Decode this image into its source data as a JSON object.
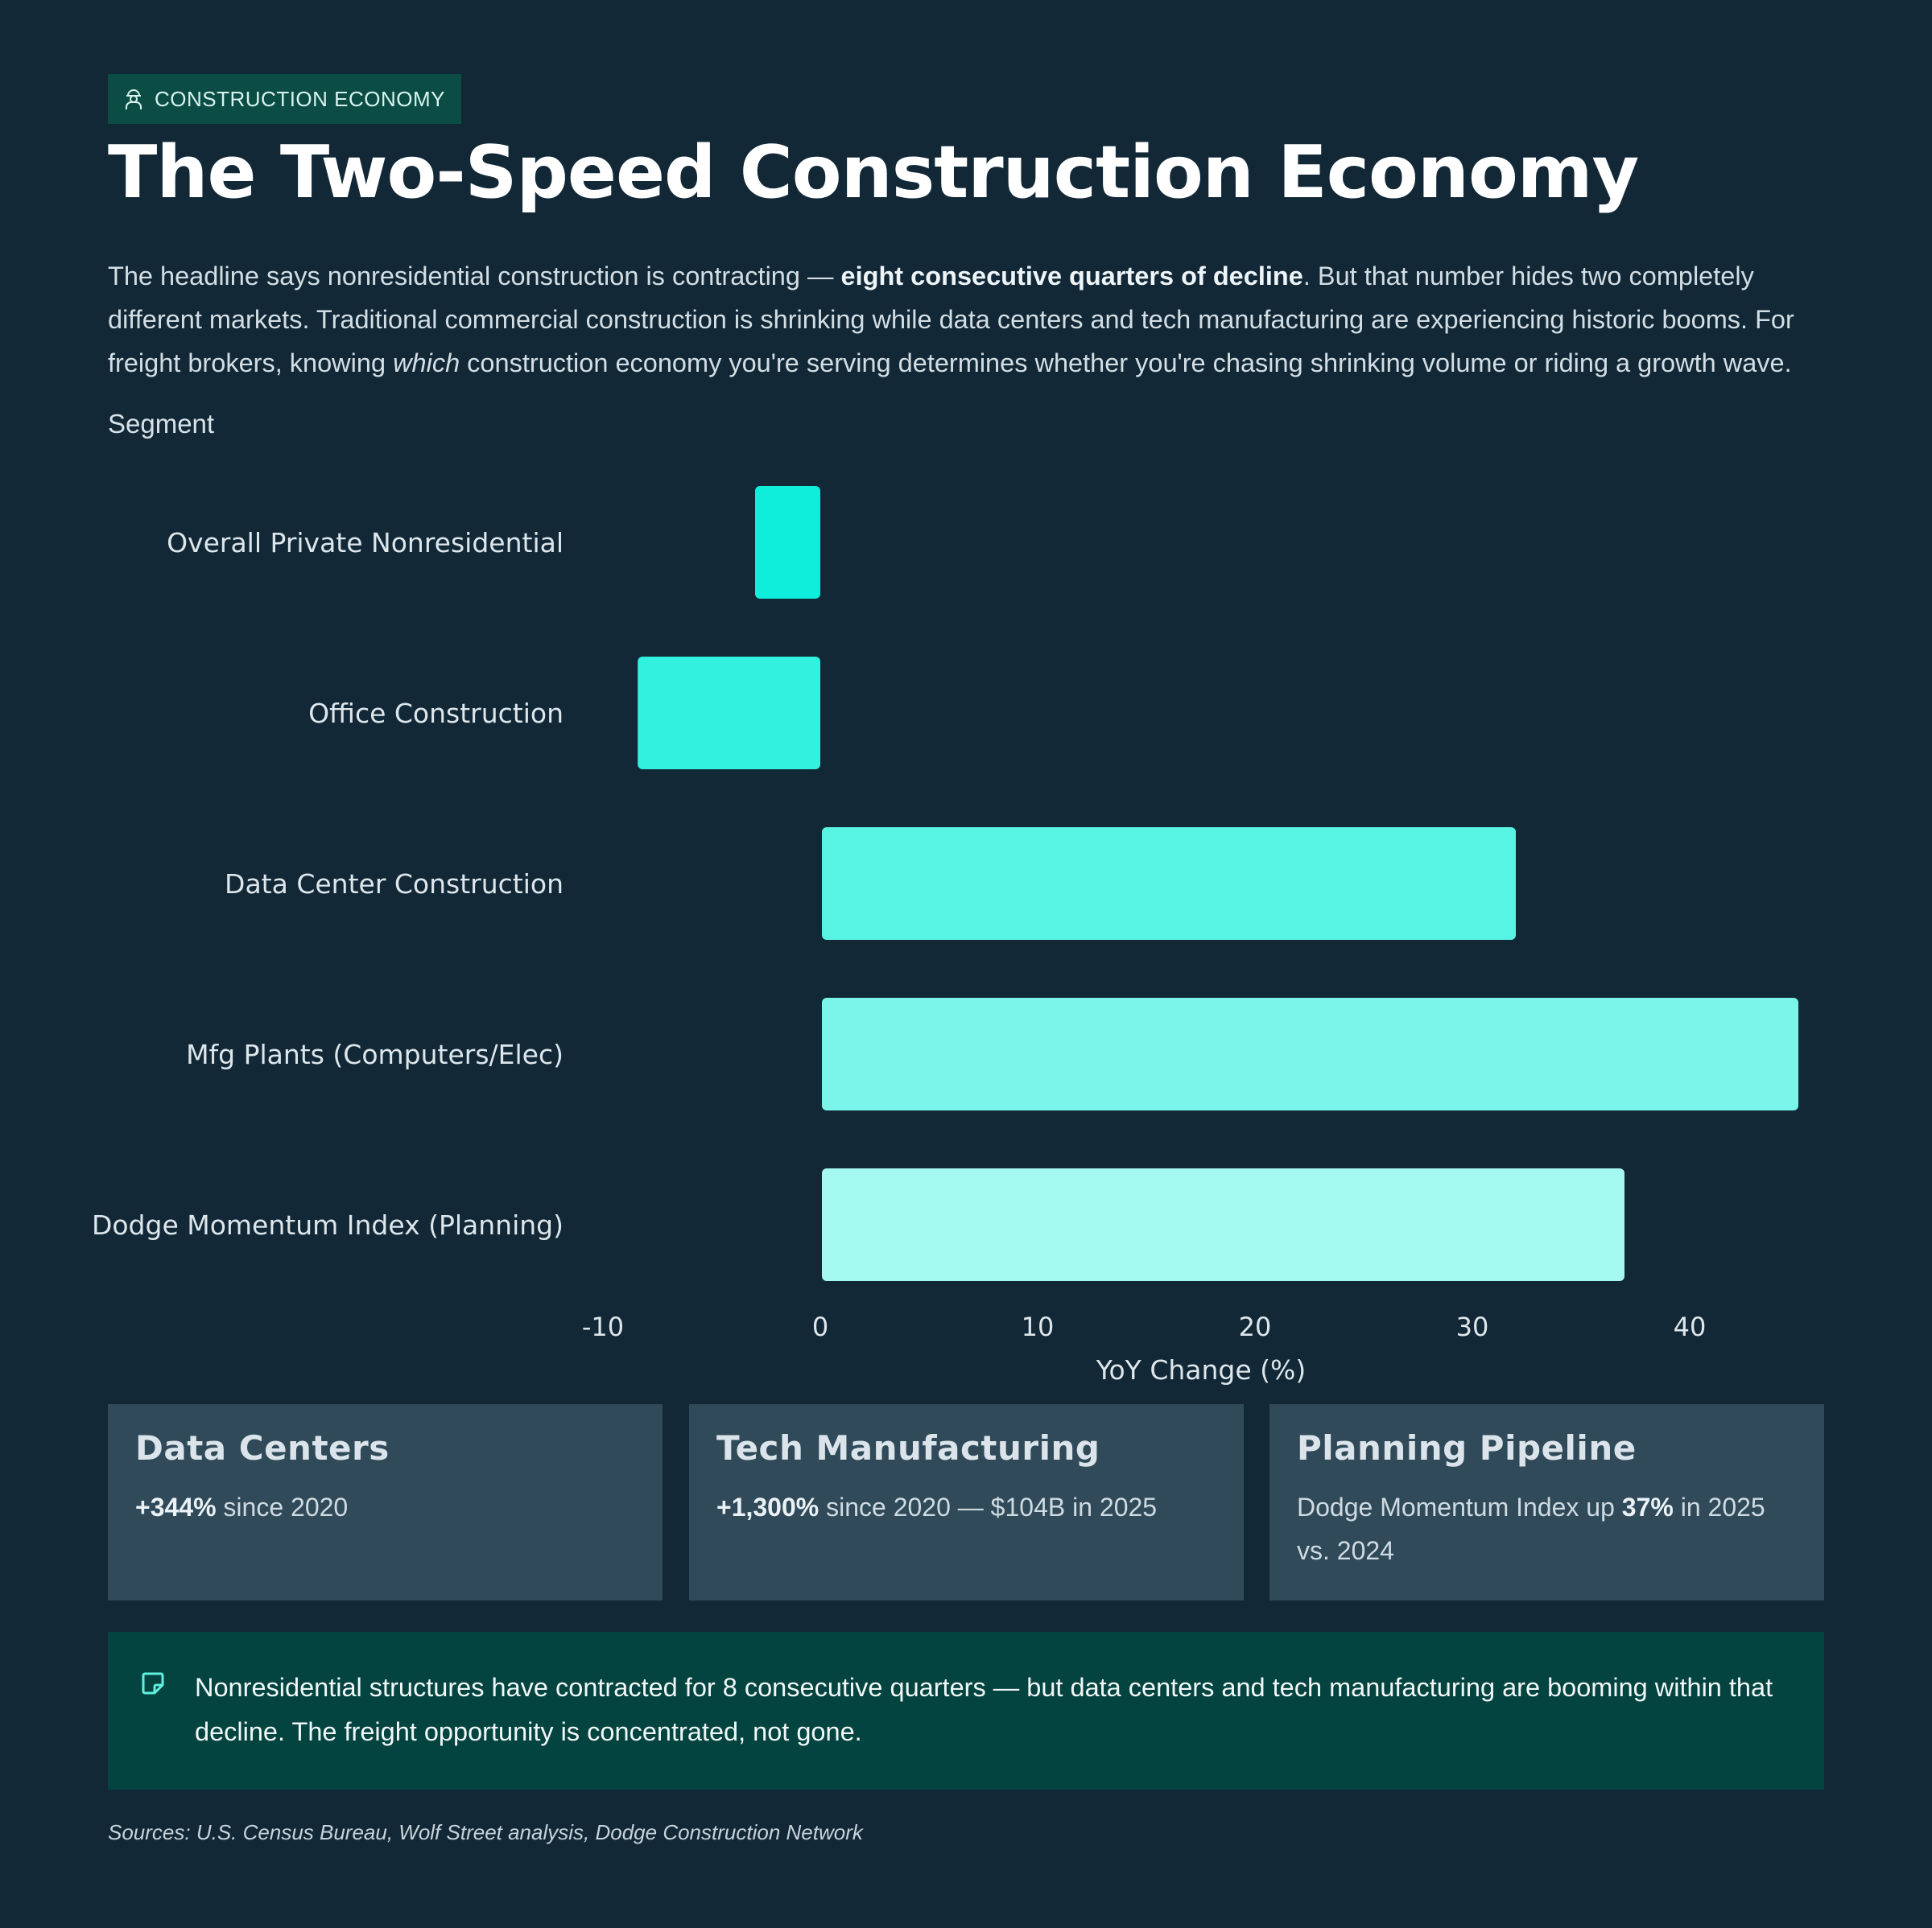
{
  "tag": {
    "label": "CONSTRUCTION ECONOMY",
    "icon": "worker-icon"
  },
  "title": "The Two-Speed Construction Economy",
  "intro": {
    "part1": "The headline says nonresidential construction is contracting — ",
    "bold": "eight consecutive quarters of decline",
    "part2": ". But that number hides two completely different markets. Traditional commercial construction is shrinking while data centers and tech manufacturing are experiencing historic booms. For freight brokers, knowing ",
    "italic": "which",
    "part3": " construction economy you're serving determines whether you're chasing shrinking volume or riding a growth wave."
  },
  "chart_data": {
    "type": "bar",
    "orientation": "horizontal",
    "y_axis_title": "Segment",
    "xlabel": "YoY Change (%)",
    "xlim": [
      -10,
      45
    ],
    "xticks": [
      -10,
      0,
      10,
      20,
      30,
      40
    ],
    "categories": [
      "Overall Private Nonresidential",
      "Office Construction",
      "Data Center Construction",
      "Mfg Plants (Computers/Elec)",
      "Dodge Momentum Index (Planning)"
    ],
    "values": [
      -3,
      -8.4,
      32,
      45,
      37
    ],
    "colors": [
      "#0feedb",
      "#32f1de",
      "#58f4e3",
      "#7bf5ea",
      "#a4faf1"
    ]
  },
  "cards": [
    {
      "title": "Data Centers",
      "bold": "+344%",
      "text": " since 2020"
    },
    {
      "title": "Tech Manufacturing",
      "bold": "+1,300%",
      "text": " since 2020 — $104B in 2025"
    },
    {
      "title": "Planning Pipeline",
      "pre": "Dodge Momentum Index up ",
      "bold": "37%",
      "text": " in 2025 vs. 2024"
    }
  ],
  "note": {
    "icon": "note-icon",
    "text": "Nonresidential structures have contracted for 8 consecutive quarters — but data centers and tech manufacturing are booming within that decline. The freight opportunity is concentrated, not gone."
  },
  "sources": "Sources: U.S. Census Bureau, Wolf Street analysis, Dodge Construction Network"
}
